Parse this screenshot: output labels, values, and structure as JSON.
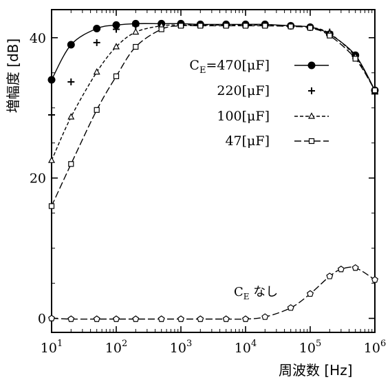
{
  "chart_data": {
    "type": "line",
    "xscale": "log",
    "xlim": [
      10,
      1000000
    ],
    "ylim": [
      -2,
      44
    ],
    "grid": false,
    "legend_position": "top-right",
    "xlabel": "周波数 [Hz]",
    "ylabel": "増幅度 [dB]",
    "xticks": [
      {
        "base": "10",
        "exp": "1"
      },
      {
        "base": "10",
        "exp": "2"
      },
      {
        "base": "10",
        "exp": "3"
      },
      {
        "base": "10",
        "exp": "4"
      },
      {
        "base": "10",
        "exp": "5"
      },
      {
        "base": "10",
        "exp": "6"
      }
    ],
    "yticks": [
      "0",
      "20",
      "40"
    ],
    "series": [
      {
        "name": "C_E=470[μF]",
        "legend_label": "=470[μF]",
        "legend_prefix": "C",
        "legend_sub": "E",
        "marker": "filled-circle",
        "line": "solid",
        "x": [
          10,
          20,
          50,
          100,
          200,
          500,
          1000,
          2000,
          5000,
          10000,
          20000,
          50000,
          100000,
          200000,
          500000,
          1000000
        ],
        "y": [
          34,
          39,
          41.3,
          41.8,
          42,
          42,
          42,
          41.9,
          41.9,
          41.9,
          41.9,
          41.7,
          41.5,
          40.5,
          37.5,
          32.5
        ]
      },
      {
        "name": "220[μF]",
        "legend_label": "220[μF]",
        "marker": "plus",
        "line": "none",
        "x": [
          10,
          20,
          50,
          100,
          200,
          500,
          1000,
          2000,
          5000,
          10000,
          20000,
          50000,
          100000,
          200000,
          500000,
          1000000
        ],
        "y": [
          29,
          33.7,
          39.3,
          41.2,
          41.7,
          41.8,
          41.9,
          41.9,
          41.9,
          41.9,
          41.8,
          41.7,
          41.5,
          40.8,
          37.5,
          32
        ]
      },
      {
        "name": "100[μF]",
        "legend_label": "100[μF]",
        "marker": "open-triangle",
        "line": "dashed",
        "x": [
          10,
          20,
          50,
          100,
          200,
          500,
          1000,
          2000,
          5000,
          10000,
          20000,
          50000,
          100000,
          200000,
          500000,
          1000000
        ],
        "y": [
          22.5,
          28.7,
          35.1,
          38.7,
          40.8,
          41.7,
          41.8,
          41.8,
          41.8,
          41.8,
          41.8,
          41.7,
          41.5,
          40.6,
          37.3,
          32.5
        ]
      },
      {
        "name": "47[μF]",
        "legend_label": "47[μF]",
        "marker": "open-square",
        "line": "long-dash",
        "x": [
          10,
          20,
          50,
          100,
          200,
          500,
          1000,
          2000,
          5000,
          10000,
          20000,
          50000,
          100000,
          200000,
          500000,
          1000000
        ],
        "y": [
          16,
          22,
          29.7,
          34.5,
          38.7,
          41.2,
          41.7,
          41.7,
          41.7,
          41.7,
          41.7,
          41.6,
          41.4,
          40.3,
          37,
          32.5
        ]
      },
      {
        "name": "C_E なし",
        "marker": "open-pentagon",
        "line": "long-dash",
        "x": [
          10,
          20,
          50,
          100,
          200,
          500,
          1000,
          2000,
          5000,
          10000,
          20000,
          50000,
          100000,
          200000,
          300000,
          500000,
          1000000
        ],
        "y": [
          0,
          -0.1,
          -0.1,
          -0.1,
          -0.1,
          -0.1,
          -0.1,
          -0.1,
          -0.1,
          -0.1,
          0.2,
          1.5,
          3.5,
          6,
          7,
          7.2,
          5.5
        ]
      }
    ],
    "annotation": {
      "prefix": "C",
      "sub": "E",
      "text": " なし"
    }
  }
}
